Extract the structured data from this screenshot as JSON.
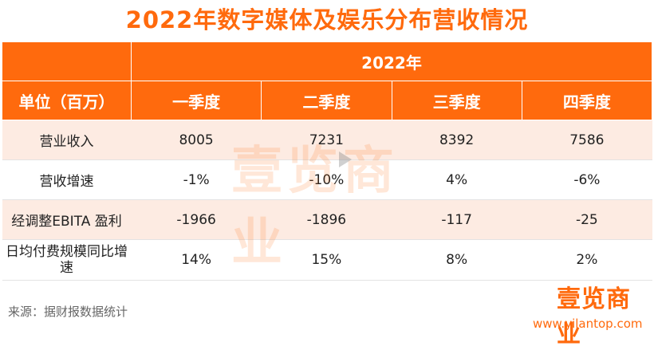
{
  "title": "2022年数字媒体及娱乐分布营收情况",
  "table": {
    "year_label": "2022年",
    "unit_label": "单位（百万）",
    "quarters": [
      "一季度",
      "二季度",
      "三季度",
      "四季度"
    ],
    "rows": [
      {
        "label": "营业收入",
        "values": [
          "8005",
          "7231",
          "8392",
          "7586"
        ]
      },
      {
        "label": "营收增速",
        "values": [
          "-1%",
          "-10%",
          "4%",
          "-6%"
        ]
      },
      {
        "label": "经调整EBITA 盈利",
        "values": [
          "-1966",
          "-1896",
          "-117",
          "-25"
        ]
      },
      {
        "label": "日均付费规模同比增速",
        "values": [
          "14%",
          "15%",
          "8%",
          "2%"
        ]
      }
    ]
  },
  "watermark": "壹览商业",
  "source": "来源：据财报数据统计",
  "logo": "壹览商业",
  "site": "www.yilantop.com",
  "colors": {
    "accent": "#ff6a0d",
    "row_alt": "#fdebe2"
  }
}
